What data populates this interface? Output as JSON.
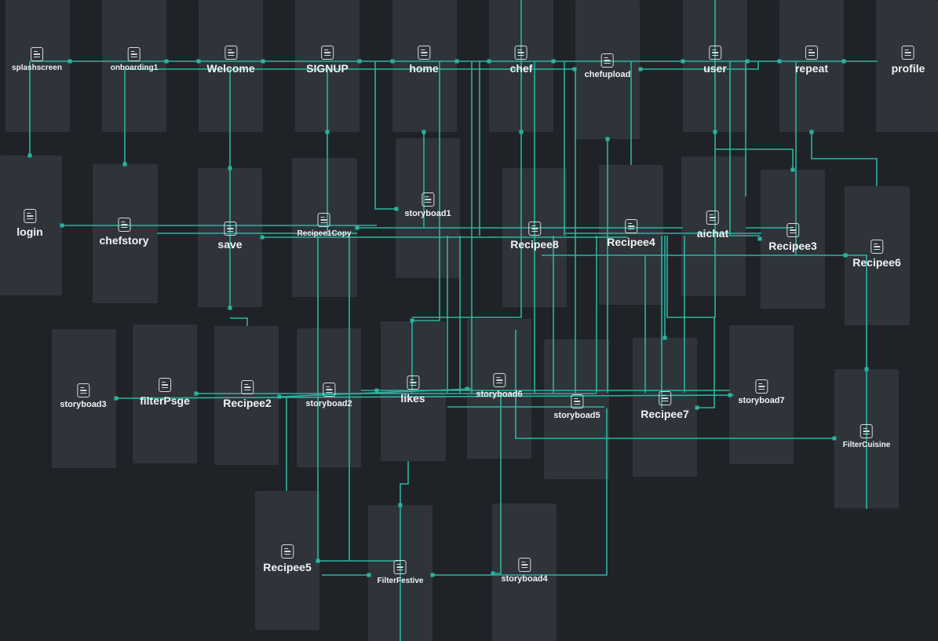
{
  "colors": {
    "background": "#1f2327",
    "screen_card": "#2e343a",
    "connection": "#2bb3a0",
    "label": "#f1f3f5",
    "icon": "#d5dadf"
  },
  "node_icon": "page-icon",
  "screens": [
    {
      "id": "splashscreen",
      "label": "splashscreen"
    },
    {
      "id": "onboarding1",
      "label": "onboarding1"
    },
    {
      "id": "welcome",
      "label": "Welcome"
    },
    {
      "id": "signup",
      "label": "SIGNUP"
    },
    {
      "id": "home",
      "label": "home"
    },
    {
      "id": "chef",
      "label": "chef"
    },
    {
      "id": "chefupload",
      "label": "chefupload"
    },
    {
      "id": "user",
      "label": "user"
    },
    {
      "id": "repeat",
      "label": "repeat"
    },
    {
      "id": "profile",
      "label": "profile"
    },
    {
      "id": "login",
      "label": "login"
    },
    {
      "id": "chefstory",
      "label": "chefstory"
    },
    {
      "id": "save",
      "label": "save"
    },
    {
      "id": "recipee1copy",
      "label": "Recipee1Copy"
    },
    {
      "id": "storyboad1",
      "label": "storyboad1"
    },
    {
      "id": "recipee8",
      "label": "Recipee8"
    },
    {
      "id": "recipee4",
      "label": "Recipee4"
    },
    {
      "id": "aichat",
      "label": "aichat"
    },
    {
      "id": "recipee3",
      "label": "Recipee3"
    },
    {
      "id": "recipee6",
      "label": "Recipee6"
    },
    {
      "id": "storyboad3",
      "label": "storyboad3"
    },
    {
      "id": "filterpsge",
      "label": "filterPsge"
    },
    {
      "id": "recipee2",
      "label": "Recipee2"
    },
    {
      "id": "storyboad2",
      "label": "storyboad2"
    },
    {
      "id": "likes",
      "label": "likes"
    },
    {
      "id": "storyboad6",
      "label": "storyboad6"
    },
    {
      "id": "storyboad5",
      "label": "storyboad5"
    },
    {
      "id": "recipee7",
      "label": "Recipee7"
    },
    {
      "id": "storyboad7",
      "label": "storyboad7"
    },
    {
      "id": "filtercuisine",
      "label": "FilterCuisine"
    },
    {
      "id": "recipee5",
      "label": "Recipee5"
    },
    {
      "id": "filterfestive",
      "label": "FilterFestive"
    },
    {
      "id": "storyboad4",
      "label": "storyboad4"
    }
  ]
}
